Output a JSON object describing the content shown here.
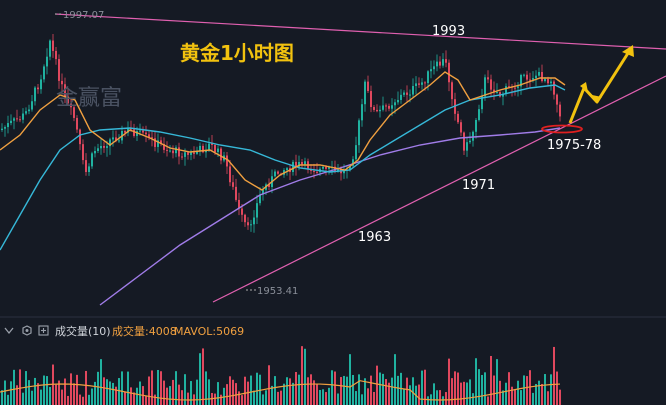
{
  "chart_data": {
    "type": "candlestick",
    "title": "黄金1小时图",
    "watermark": "金赢富",
    "price_labels": [
      {
        "key": "high",
        "value": "1997.07"
      },
      {
        "key": "low",
        "value": "1953.41"
      }
    ],
    "level_labels": [
      {
        "key": "l1993",
        "text": "1993"
      },
      {
        "key": "l1971",
        "text": "1971"
      },
      {
        "key": "l1963",
        "text": "1963"
      },
      {
        "key": "l1975",
        "text": "1975-78"
      }
    ],
    "colors": {
      "background": "#151a24",
      "up": "#20b2a0",
      "down": "#e0485e",
      "ma_fast": "#f0a040",
      "ma_mid": "#36b8d8",
      "ma_slow": "#a07ce8",
      "trendline": "#e060b0",
      "forecast_arrow": "#f2c20f",
      "title": "#f2c20f",
      "target_ellipse": "#e02020"
    },
    "volume_panel": {
      "indicator_name": "成交量(10)",
      "volume_label": "成交量:4008",
      "mavol_label": "MAVOL:5069",
      "volume_color": "#f0a040",
      "mavol_color": "#f0a040"
    }
  }
}
